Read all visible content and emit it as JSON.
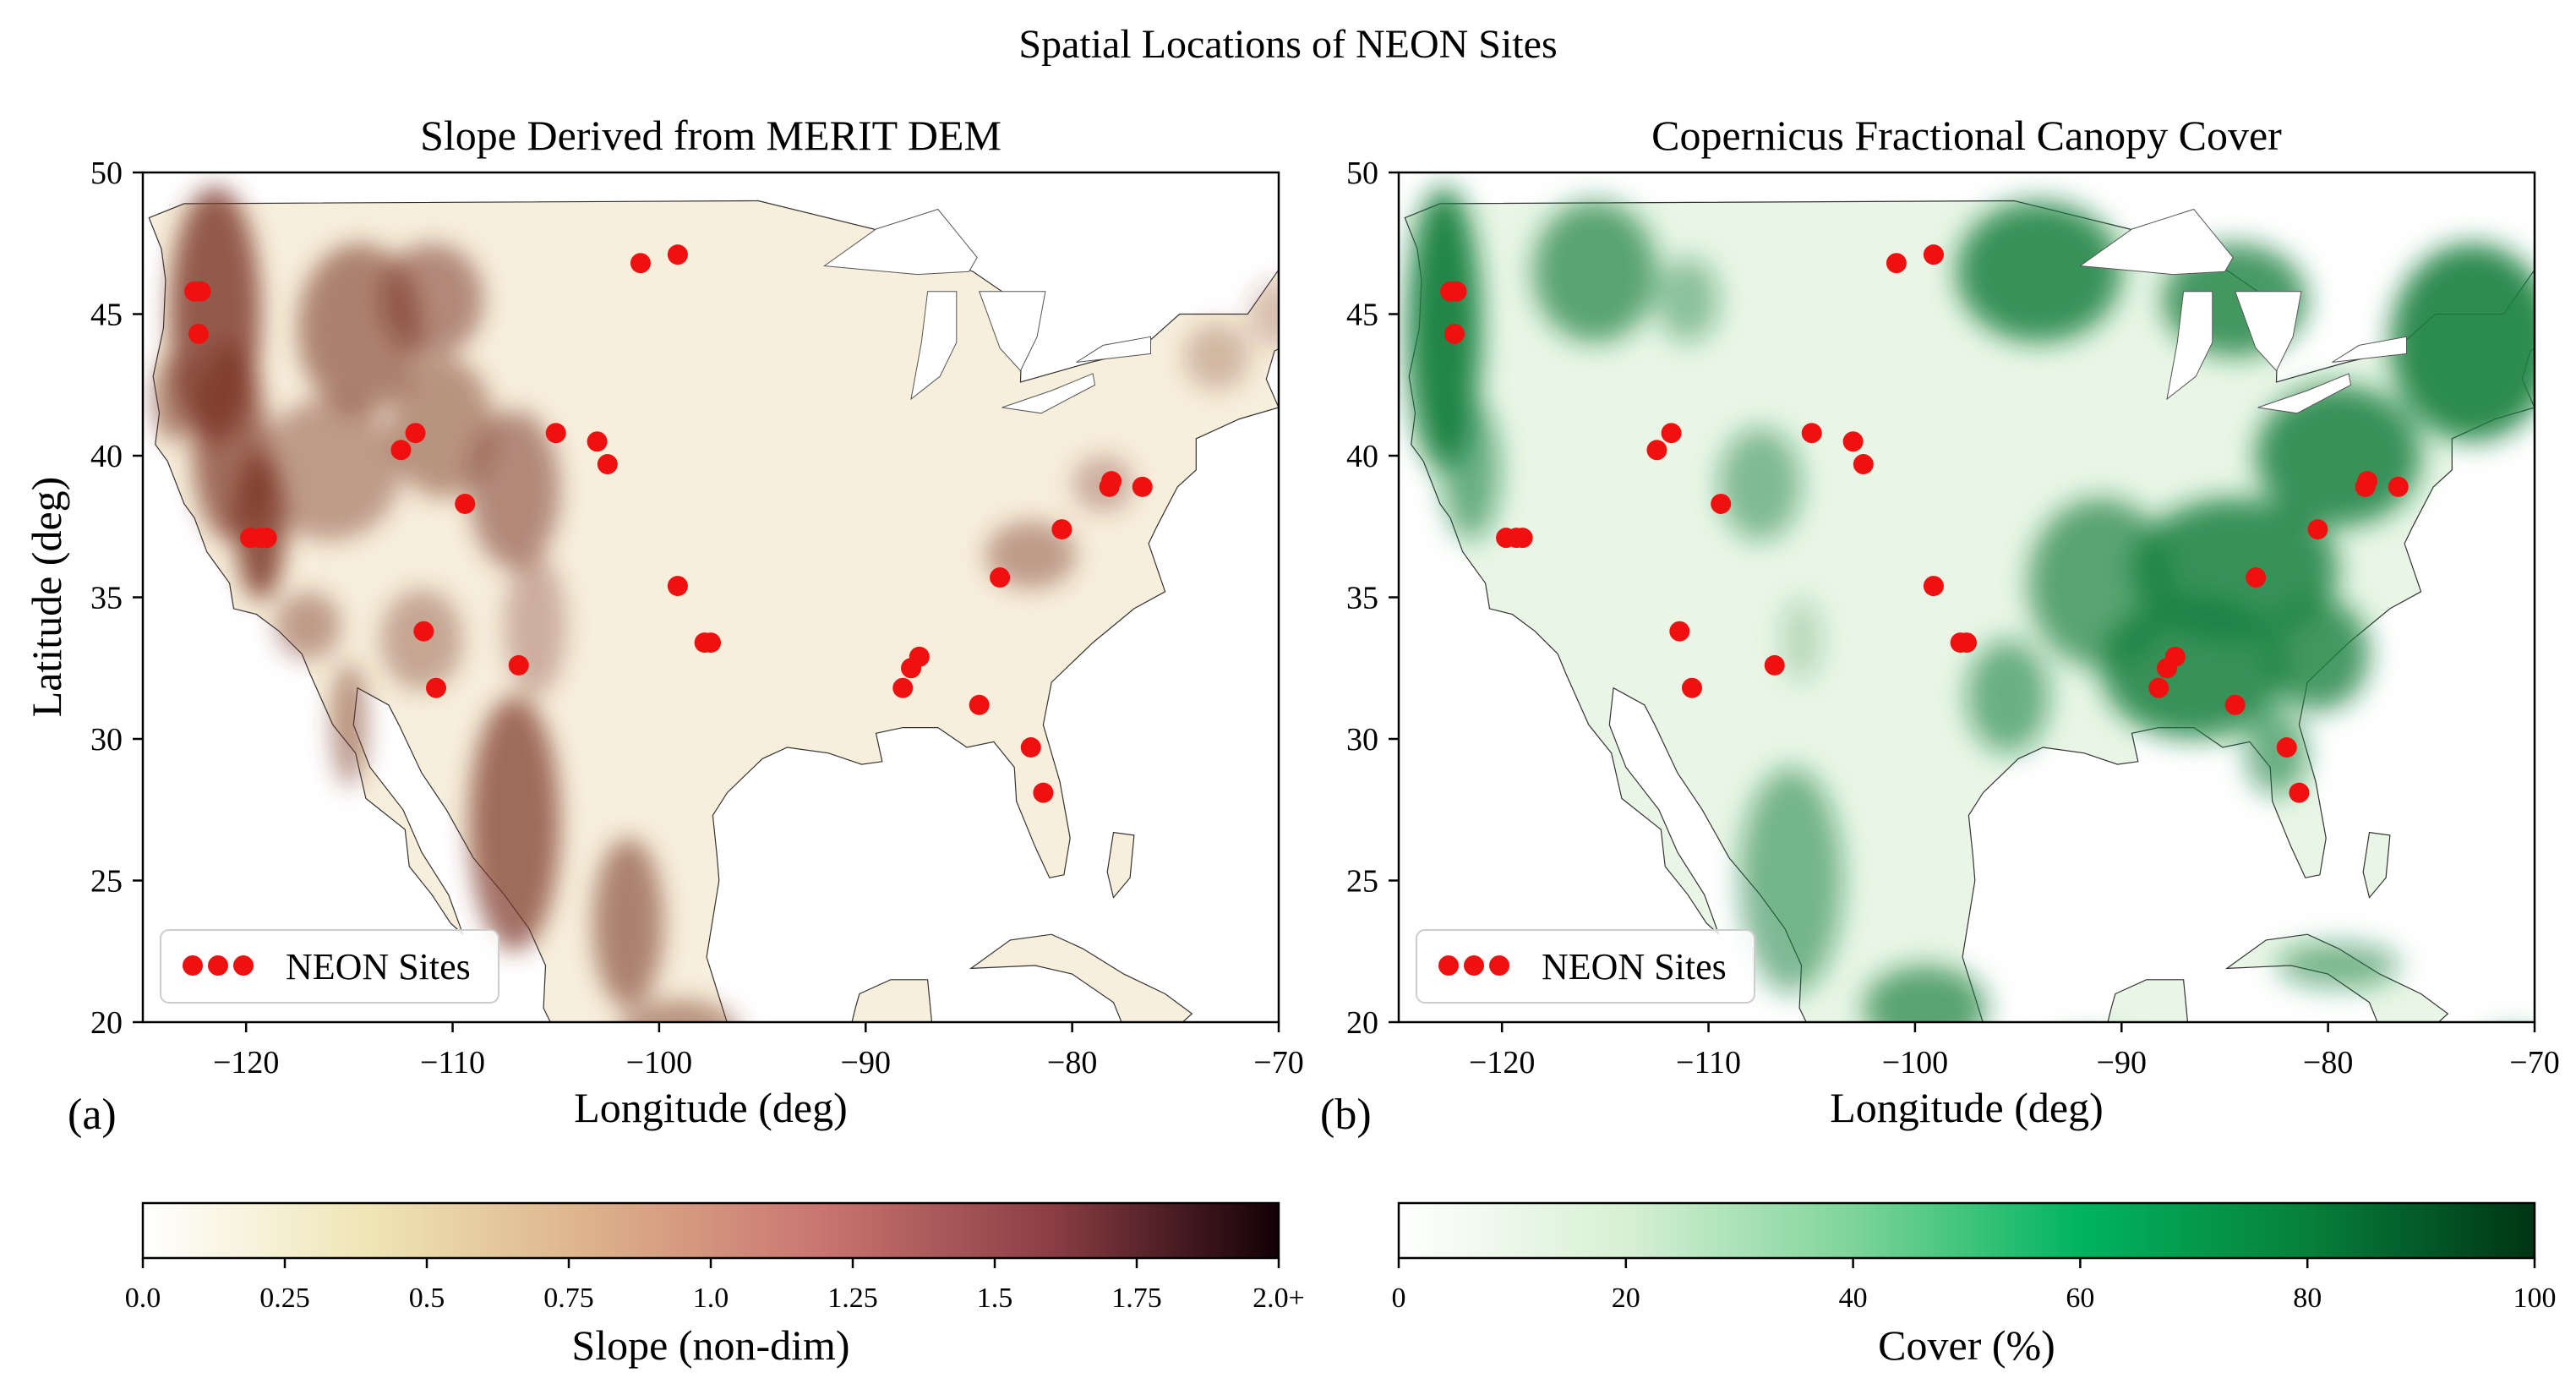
{
  "figure": {
    "title": "Spatial Locations of NEON Sites"
  },
  "panels": [
    {
      "id": "a",
      "panel_label": "(a)",
      "title": "Slope Derived from MERIT DEM",
      "xlabel": "Longitude (deg)",
      "ylabel": "Latitude (deg)",
      "show_ylabel": true,
      "xlim": [
        -125,
        -70
      ],
      "ylim": [
        20,
        50
      ],
      "xticks": [
        -120,
        -110,
        -100,
        -90,
        -80,
        -70
      ],
      "xtick_labels": [
        "−120",
        "−110",
        "−100",
        "−90",
        "−80",
        "−70"
      ],
      "yticks": [
        20,
        25,
        30,
        35,
        40,
        45,
        50
      ],
      "ytick_labels": [
        "20",
        "25",
        "30",
        "35",
        "40",
        "45",
        "50"
      ],
      "legend": {
        "label": "NEON Sites",
        "placement": "lower-left"
      },
      "land_color": "#f7efdc",
      "terrain_color": "#7a3525",
      "colorbar": {
        "label": "Slope (non-dim)",
        "tick_values": [
          0,
          0.25,
          0.5,
          0.75,
          1.0,
          1.25,
          1.5,
          1.75,
          2.0
        ],
        "tick_labels": [
          "0.0",
          "0.25",
          "0.5",
          "0.75",
          "1.0",
          "1.25",
          "1.5",
          "1.75",
          "2.0+"
        ],
        "range": [
          0,
          2
        ],
        "colors": [
          "#ffffff",
          "#efe5b5",
          "#dcb08a",
          "#c97470",
          "#8a3e44",
          "#120006"
        ]
      }
    },
    {
      "id": "b",
      "panel_label": "(b)",
      "title": "Copernicus Fractional Canopy Cover",
      "xlabel": "Longitude (deg)",
      "ylabel": "",
      "show_ylabel": false,
      "xlim": [
        -125,
        -70
      ],
      "ylim": [
        20,
        50
      ],
      "xticks": [
        -120,
        -110,
        -100,
        -90,
        -80,
        -70
      ],
      "xtick_labels": [
        "−120",
        "−110",
        "−100",
        "−90",
        "−80",
        "−70"
      ],
      "yticks": [
        20,
        25,
        30,
        35,
        40,
        45,
        50
      ],
      "ytick_labels": [
        "20",
        "25",
        "30",
        "35",
        "40",
        "45",
        "50"
      ],
      "legend": {
        "label": "NEON Sites",
        "placement": "lower-left"
      },
      "land_color": "#e9f6e6",
      "forest_color": "#17803f",
      "colorbar": {
        "label": "Cover (%)",
        "tick_values": [
          0,
          20,
          40,
          60,
          80,
          100
        ],
        "tick_labels": [
          "0",
          "20",
          "40",
          "60",
          "80",
          "100"
        ],
        "range": [
          0,
          100
        ],
        "colors": [
          "#ffffff",
          "#d7f0d3",
          "#7ed49a",
          "#00b45e",
          "#07803b",
          "#003414"
        ]
      }
    }
  ],
  "marker_color": "#f01010",
  "chart_data": [
    {
      "type": "scatter",
      "panel": "a",
      "title": "Slope Derived from MERIT DEM",
      "xlabel": "Longitude (deg)",
      "ylabel": "Latitude (deg)",
      "xlim": [
        -125,
        -70
      ],
      "ylim": [
        20,
        50
      ],
      "grid": false,
      "legend_placement": "lower-left",
      "series": [
        {
          "name": "NEON Sites",
          "points": [
            [
              -122.5,
              45.8
            ],
            [
              -122.2,
              45.8
            ],
            [
              -122.3,
              44.3
            ],
            [
              -119.8,
              37.1
            ],
            [
              -119.3,
              37.1
            ],
            [
              -119.0,
              37.1
            ],
            [
              -112.5,
              40.2
            ],
            [
              -111.8,
              40.8
            ],
            [
              -109.4,
              38.3
            ],
            [
              -111.4,
              33.8
            ],
            [
              -110.8,
              31.8
            ],
            [
              -106.8,
              32.6
            ],
            [
              -105.0,
              40.8
            ],
            [
              -103.0,
              40.5
            ],
            [
              -102.5,
              39.7
            ],
            [
              -100.9,
              46.8
            ],
            [
              -99.1,
              47.1
            ],
            [
              -99.1,
              35.4
            ],
            [
              -97.8,
              33.4
            ],
            [
              -97.5,
              33.4
            ],
            [
              -88.2,
              31.8
            ],
            [
              -87.8,
              32.5
            ],
            [
              -87.4,
              32.9
            ],
            [
              -84.5,
              31.2
            ],
            [
              -83.5,
              35.7
            ],
            [
              -82.0,
              29.7
            ],
            [
              -81.4,
              28.1
            ],
            [
              -80.5,
              37.4
            ],
            [
              -78.2,
              38.9
            ],
            [
              -78.1,
              39.1
            ],
            [
              -76.6,
              38.9
            ]
          ]
        }
      ],
      "colorbar": {
        "label": "Slope (non-dim)",
        "range": [
          0,
          2
        ]
      }
    },
    {
      "type": "scatter",
      "panel": "b",
      "title": "Copernicus Fractional Canopy Cover",
      "xlabel": "Longitude (deg)",
      "ylabel": "",
      "xlim": [
        -125,
        -70
      ],
      "ylim": [
        20,
        50
      ],
      "grid": false,
      "legend_placement": "lower-left",
      "series": [
        {
          "name": "NEON Sites",
          "points": [
            [
              -122.5,
              45.8
            ],
            [
              -122.2,
              45.8
            ],
            [
              -122.3,
              44.3
            ],
            [
              -119.8,
              37.1
            ],
            [
              -119.3,
              37.1
            ],
            [
              -119.0,
              37.1
            ],
            [
              -112.5,
              40.2
            ],
            [
              -111.8,
              40.8
            ],
            [
              -109.4,
              38.3
            ],
            [
              -111.4,
              33.8
            ],
            [
              -110.8,
              31.8
            ],
            [
              -106.8,
              32.6
            ],
            [
              -105.0,
              40.8
            ],
            [
              -103.0,
              40.5
            ],
            [
              -102.5,
              39.7
            ],
            [
              -100.9,
              46.8
            ],
            [
              -99.1,
              47.1
            ],
            [
              -99.1,
              35.4
            ],
            [
              -97.8,
              33.4
            ],
            [
              -97.5,
              33.4
            ],
            [
              -88.2,
              31.8
            ],
            [
              -87.8,
              32.5
            ],
            [
              -87.4,
              32.9
            ],
            [
              -84.5,
              31.2
            ],
            [
              -83.5,
              35.7
            ],
            [
              -82.0,
              29.7
            ],
            [
              -81.4,
              28.1
            ],
            [
              -80.5,
              37.4
            ],
            [
              -78.2,
              38.9
            ],
            [
              -78.1,
              39.1
            ],
            [
              -76.6,
              38.9
            ]
          ]
        }
      ],
      "colorbar": {
        "label": "Cover (%)",
        "range": [
          0,
          100
        ]
      }
    }
  ]
}
